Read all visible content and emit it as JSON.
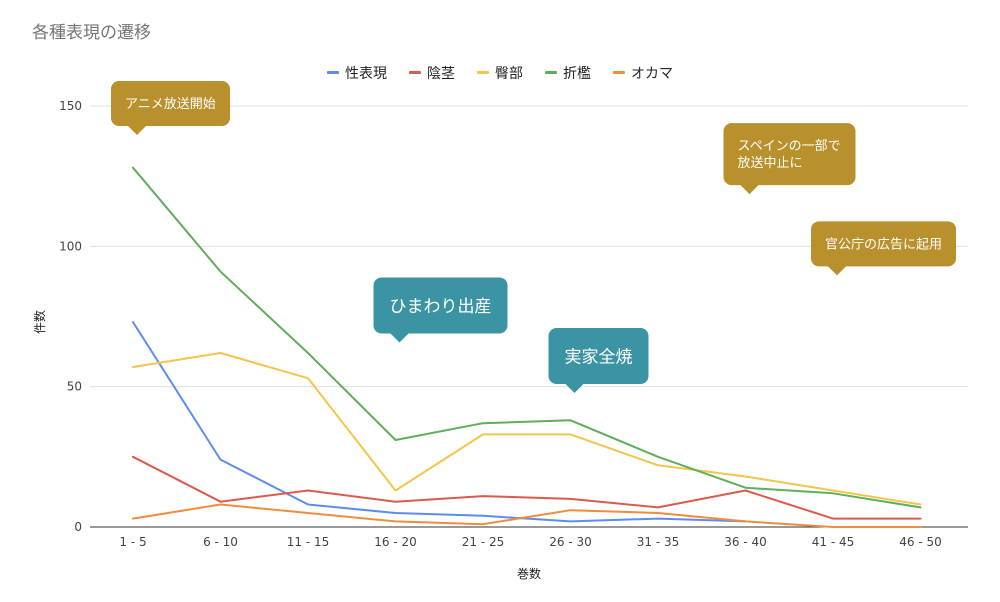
{
  "chart_data": {
    "type": "line",
    "title": "各種表現の遷移",
    "xlabel": "巻数",
    "ylabel": "件数",
    "categories": [
      "1 - 5",
      "6 - 10",
      "11 - 15",
      "16 - 20",
      "21 - 25",
      "26 - 30",
      "31 - 35",
      "36 - 40",
      "41 - 45",
      "46 - 50"
    ],
    "ylim": [
      0,
      150
    ],
    "yticks": [
      0,
      50,
      100,
      150
    ],
    "grid": true,
    "legend_position": "top",
    "series": [
      {
        "name": "性表現",
        "color": "#5b8def",
        "values": [
          73,
          24,
          8,
          5,
          4,
          2,
          3,
          2,
          null,
          null
        ]
      },
      {
        "name": "陰茎",
        "color": "#db5a4b",
        "values": [
          25,
          9,
          13,
          9,
          11,
          10,
          7,
          13,
          3,
          3
        ]
      },
      {
        "name": "臀部",
        "color": "#f4c54b",
        "values": [
          57,
          62,
          53,
          13,
          33,
          33,
          22,
          18,
          13,
          8
        ]
      },
      {
        "name": "折檻",
        "color": "#5fae59",
        "values": [
          128,
          91,
          62,
          31,
          37,
          38,
          25,
          14,
          12,
          7
        ]
      },
      {
        "name": "オカマ",
        "color": "#f08c3e",
        "values": [
          3,
          8,
          5,
          2,
          1,
          6,
          5,
          2,
          0,
          0
        ]
      }
    ],
    "annotations": [
      {
        "text": [
          "アニメ放送開始"
        ],
        "color": "#b8902c",
        "category": "1 - 5",
        "y": 150
      },
      {
        "text": [
          "スペインの一部で",
          "放送中止に"
        ],
        "color": "#b8902c",
        "category": "36 - 40",
        "y": 135
      },
      {
        "text": [
          "官公庁の広告に起用"
        ],
        "color": "#b8902c",
        "category": "41 - 45",
        "y": 100
      },
      {
        "text": [
          "ひまわり出産"
        ],
        "color": "#3b94a4",
        "category": "16 - 20",
        "y": 80
      },
      {
        "text": [
          "実家全焼"
        ],
        "color": "#3b94a4",
        "category": "26 - 30",
        "y": 62
      }
    ]
  }
}
